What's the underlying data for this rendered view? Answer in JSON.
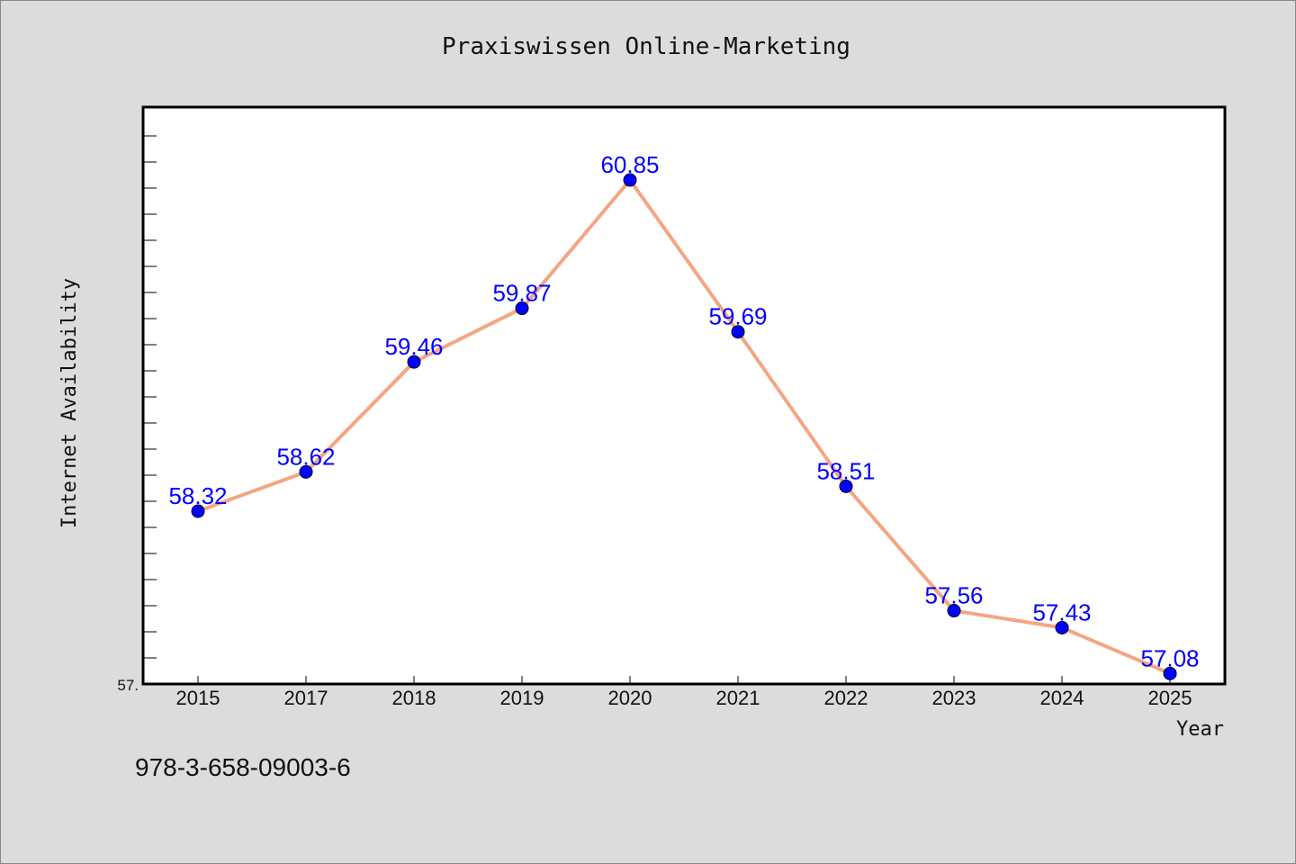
{
  "chart_data": {
    "type": "line",
    "title": "Praxiswissen Online-Marketing",
    "xlabel": "Year",
    "ylabel": "Internet Availability",
    "categories": [
      "2015",
      "2017",
      "2018",
      "2019",
      "2020",
      "2021",
      "2022",
      "2023",
      "2024",
      "2025"
    ],
    "series": [
      {
        "values": [
          58.32,
          58.62,
          59.46,
          59.87,
          60.85,
          59.69,
          58.51,
          57.56,
          57.43,
          57.08
        ],
        "labels": [
          "58.32",
          "58.62",
          "59.46",
          "59.87",
          "60.85",
          "59.69",
          "58.51",
          "57.56",
          "57.43",
          "57.08"
        ]
      }
    ],
    "y_tick_labels": [
      "57."
    ],
    "ylim": [
      57.0,
      61.4
    ],
    "grid": false,
    "line_color": "#f4a582",
    "marker_color": "#0000ff",
    "label_color": "#0000ff"
  },
  "footer": {
    "isbn": "978-3-658-09003-6"
  }
}
